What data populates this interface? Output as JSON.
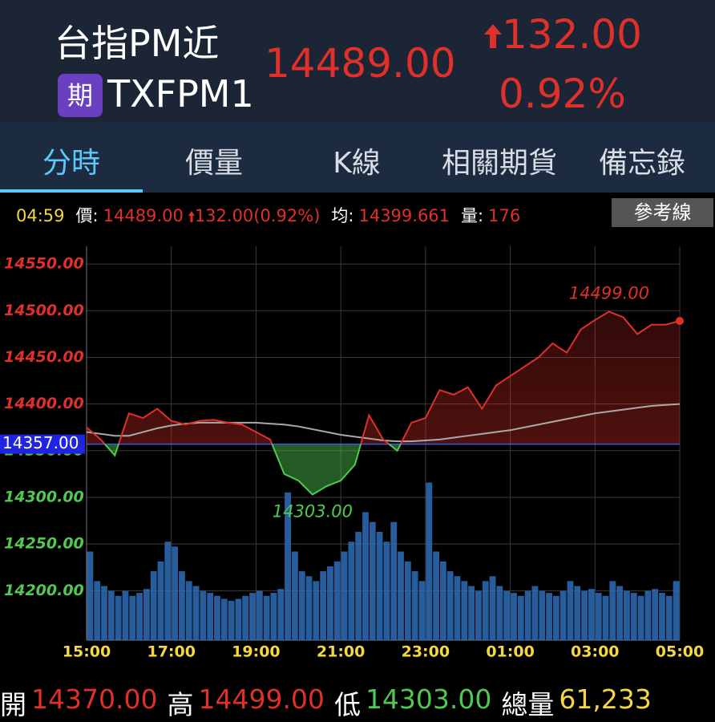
{
  "header": {
    "title": "台指PM近",
    "badge": "期",
    "code": "TXFPM1",
    "price": "14489.00",
    "change": "132.00",
    "change_pct": "0.92%"
  },
  "tabs": [
    "分時",
    "價量",
    "K線",
    "相關期貨",
    "備忘錄"
  ],
  "info": {
    "time": "04:59",
    "price_label": "價:",
    "price": "14489.00",
    "change": "132.00(0.92%)",
    "avg_label": "均:",
    "avg": "14399.661",
    "vol_label": "量:",
    "vol": "176",
    "ref_button": "參考線"
  },
  "chart_data": {
    "type": "line",
    "grid": true,
    "up_color": "#e0302a",
    "down_color": "#4fc94f",
    "x": [
      0,
      20,
      40,
      60,
      80,
      100,
      120,
      140,
      160,
      180,
      200,
      220,
      240,
      260,
      280,
      300,
      320,
      340,
      360,
      380,
      400,
      420,
      440,
      460,
      480,
      500,
      520,
      540,
      560,
      580,
      600,
      620,
      640,
      660,
      680,
      700,
      720,
      740,
      760,
      780,
      800,
      820,
      840
    ],
    "series": [
      {
        "color": "#e0302a",
        "values": [
          14375,
          14362,
          14345,
          14390,
          14385,
          14395,
          14382,
          14378,
          14382,
          14383,
          14380,
          14378,
          14370,
          14362,
          14325,
          14318,
          14303,
          14312,
          14318,
          14335,
          14388,
          14362,
          14350,
          14380,
          14385,
          14415,
          14410,
          14418,
          14395,
          14420,
          14430,
          14440,
          14450,
          14465,
          14455,
          14480,
          14490,
          14499,
          14493,
          14475,
          14485,
          14485,
          14489
        ]
      },
      {
        "color": "#a9a9a9",
        "values": [
          14370,
          14368,
          14366,
          14366,
          14370,
          14374,
          14377,
          14379,
          14380,
          14380,
          14380,
          14380,
          14380,
          14379,
          14378,
          14376,
          14373,
          14370,
          14367,
          14365,
          14363,
          14361,
          14360,
          14360,
          14361,
          14362,
          14364,
          14366,
          14368,
          14370,
          14372,
          14375,
          14378,
          14381,
          14384,
          14387,
          14390,
          14392,
          14394,
          14396,
          14398,
          14399,
          14400
        ]
      }
    ],
    "xlim": [
      0,
      840
    ],
    "xticks": [
      {
        "value": 0,
        "label": "15:00"
      },
      {
        "value": 120,
        "label": "17:00"
      },
      {
        "value": 240,
        "label": "19:00"
      },
      {
        "value": 360,
        "label": "21:00"
      },
      {
        "value": 480,
        "label": "23:00"
      },
      {
        "value": 600,
        "label": "01:00"
      },
      {
        "value": 720,
        "label": "03:00"
      },
      {
        "value": 840,
        "label": "05:00"
      }
    ],
    "ylim": [
      14147,
      14569
    ],
    "yticks": [
      {
        "value": 14200,
        "label": "14200.00"
      },
      {
        "value": 14250,
        "label": "14250.00"
      },
      {
        "value": 14300,
        "label": "14300.00"
      },
      {
        "value": 14350,
        "label": "14350.00"
      },
      {
        "value": 14400,
        "label": "14400.00"
      },
      {
        "value": 14450,
        "label": "14450.00"
      },
      {
        "value": 14500,
        "label": "14500.00"
      },
      {
        "value": 14550,
        "label": "14550.00"
      }
    ],
    "reference": {
      "value": 14357,
      "label": "14357.00"
    },
    "annotations": [
      {
        "x": 740,
        "y": 14499,
        "label": "14499.00"
      },
      {
        "x": 320,
        "y": 14303,
        "label": "14303.00"
      }
    ],
    "volume": {
      "color": "#2f6db8",
      "y2lim": [
        0,
        4000
      ],
      "bins": [
        0,
        10,
        20,
        30,
        40,
        50,
        60,
        70,
        80,
        90,
        100,
        110,
        120,
        130,
        140,
        150,
        160,
        170,
        180,
        190,
        200,
        210,
        220,
        230,
        240,
        250,
        260,
        270,
        280,
        290,
        300,
        310,
        320,
        330,
        340,
        350,
        360,
        370,
        380,
        390,
        400,
        410,
        420,
        430,
        440,
        450,
        460,
        470,
        480,
        490,
        500,
        510,
        520,
        530,
        540,
        550,
        560,
        570,
        580,
        590,
        600,
        610,
        620,
        630,
        640,
        650,
        660,
        670,
        680,
        690,
        700,
        710,
        720,
        730,
        740,
        750,
        760,
        770,
        780,
        790,
        800,
        810,
        820,
        830,
        840
      ],
      "values": [
        900,
        600,
        550,
        500,
        450,
        500,
        450,
        480,
        520,
        700,
        800,
        1000,
        950,
        700,
        600,
        550,
        500,
        480,
        450,
        420,
        400,
        420,
        450,
        480,
        500,
        450,
        480,
        520,
        1500,
        900,
        700,
        650,
        600,
        700,
        750,
        800,
        900,
        1000,
        1100,
        1300,
        1200,
        1100,
        1000,
        1200,
        900,
        800,
        700,
        600,
        1600,
        900,
        800,
        700,
        650,
        600,
        550,
        500,
        600,
        650,
        550,
        500,
        480,
        450,
        500,
        550,
        500,
        480,
        450,
        500,
        600,
        550,
        500,
        520,
        480,
        450,
        600,
        550,
        500,
        480,
        450,
        500,
        520,
        480,
        450,
        600
      ]
    }
  },
  "footer": [
    {
      "label": "開",
      "value": "14370.00"
    },
    {
      "label": "高",
      "value": "14499.00"
    },
    {
      "label": "低",
      "value": "14303.00"
    },
    {
      "label": "總量",
      "value": "61,233"
    }
  ]
}
